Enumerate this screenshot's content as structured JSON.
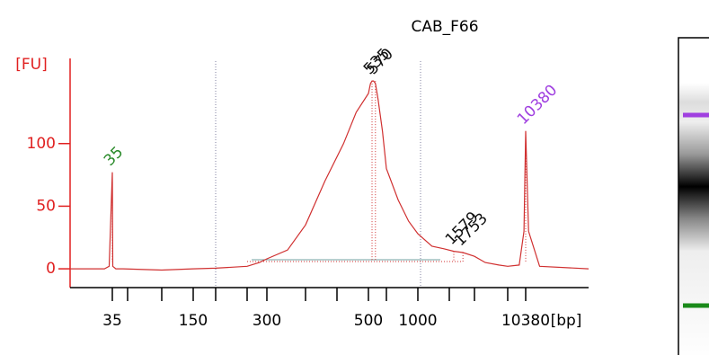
{
  "chart_data": {
    "type": "line",
    "title": "CAB_F66",
    "y_label": "[FU]",
    "x_unit": "[bp]",
    "ylim": [
      -15,
      168
    ],
    "yticks": [
      0,
      50,
      100
    ],
    "xlim": [
      30,
      20000
    ],
    "xticks": [
      {
        "value": 35,
        "label": "35"
      },
      {
        "value": 50,
        "label": null
      },
      {
        "value": 100,
        "label": null
      },
      {
        "value": 150,
        "label": "150"
      },
      {
        "value": 200,
        "label": null
      },
      {
        "value": 250,
        "label": null
      },
      {
        "value": 300,
        "label": "300"
      },
      {
        "value": 400,
        "label": null
      },
      {
        "value": 450,
        "label": null
      },
      {
        "value": 500,
        "label": "500"
      },
      {
        "value": 700,
        "label": null
      },
      {
        "value": 1000,
        "label": "1000"
      },
      {
        "value": 1500,
        "label": null
      },
      {
        "value": 2000,
        "label": null
      },
      {
        "value": 7000,
        "label": null
      },
      {
        "value": 10380,
        "label": "10380"
      }
    ],
    "series": [
      {
        "name": "CAB_F66",
        "color": "#d03030",
        "x": [
          30,
          34,
          34.6,
          35,
          35.4,
          38,
          45,
          100,
          150,
          200,
          250,
          280,
          300,
          350,
          400,
          430,
          460,
          480,
          500,
          520,
          535,
          550,
          570,
          600,
          650,
          700,
          800,
          900,
          1000,
          1200,
          1400,
          1579,
          1753,
          2000,
          3000,
          5000,
          7000,
          9000,
          10000,
          10380,
          10700,
          12000,
          20000
        ],
        "values": [
          0,
          0,
          2,
          77,
          2,
          0,
          0,
          -1,
          0,
          0.5,
          2,
          5,
          8,
          15,
          35,
          70,
          100,
          125,
          140,
          148,
          150,
          150,
          148,
          135,
          110,
          80,
          55,
          38,
          28,
          18,
          16,
          14,
          13,
          10,
          5,
          3,
          2,
          3,
          30,
          110,
          30,
          2,
          0
        ]
      }
    ],
    "peaks": [
      {
        "size": 35,
        "fu": 77,
        "color": "#2a8a2a"
      },
      {
        "size": 535,
        "fu": 150,
        "color": "#111111"
      },
      {
        "size": 570,
        "fu": 150,
        "color": "#111111"
      },
      {
        "size": 1579,
        "fu": 14,
        "color": "#111111"
      },
      {
        "size": 1753,
        "fu": 13,
        "color": "#111111"
      },
      {
        "size": 10380,
        "fu": 110,
        "color": "#a040e0"
      }
    ]
  }
}
